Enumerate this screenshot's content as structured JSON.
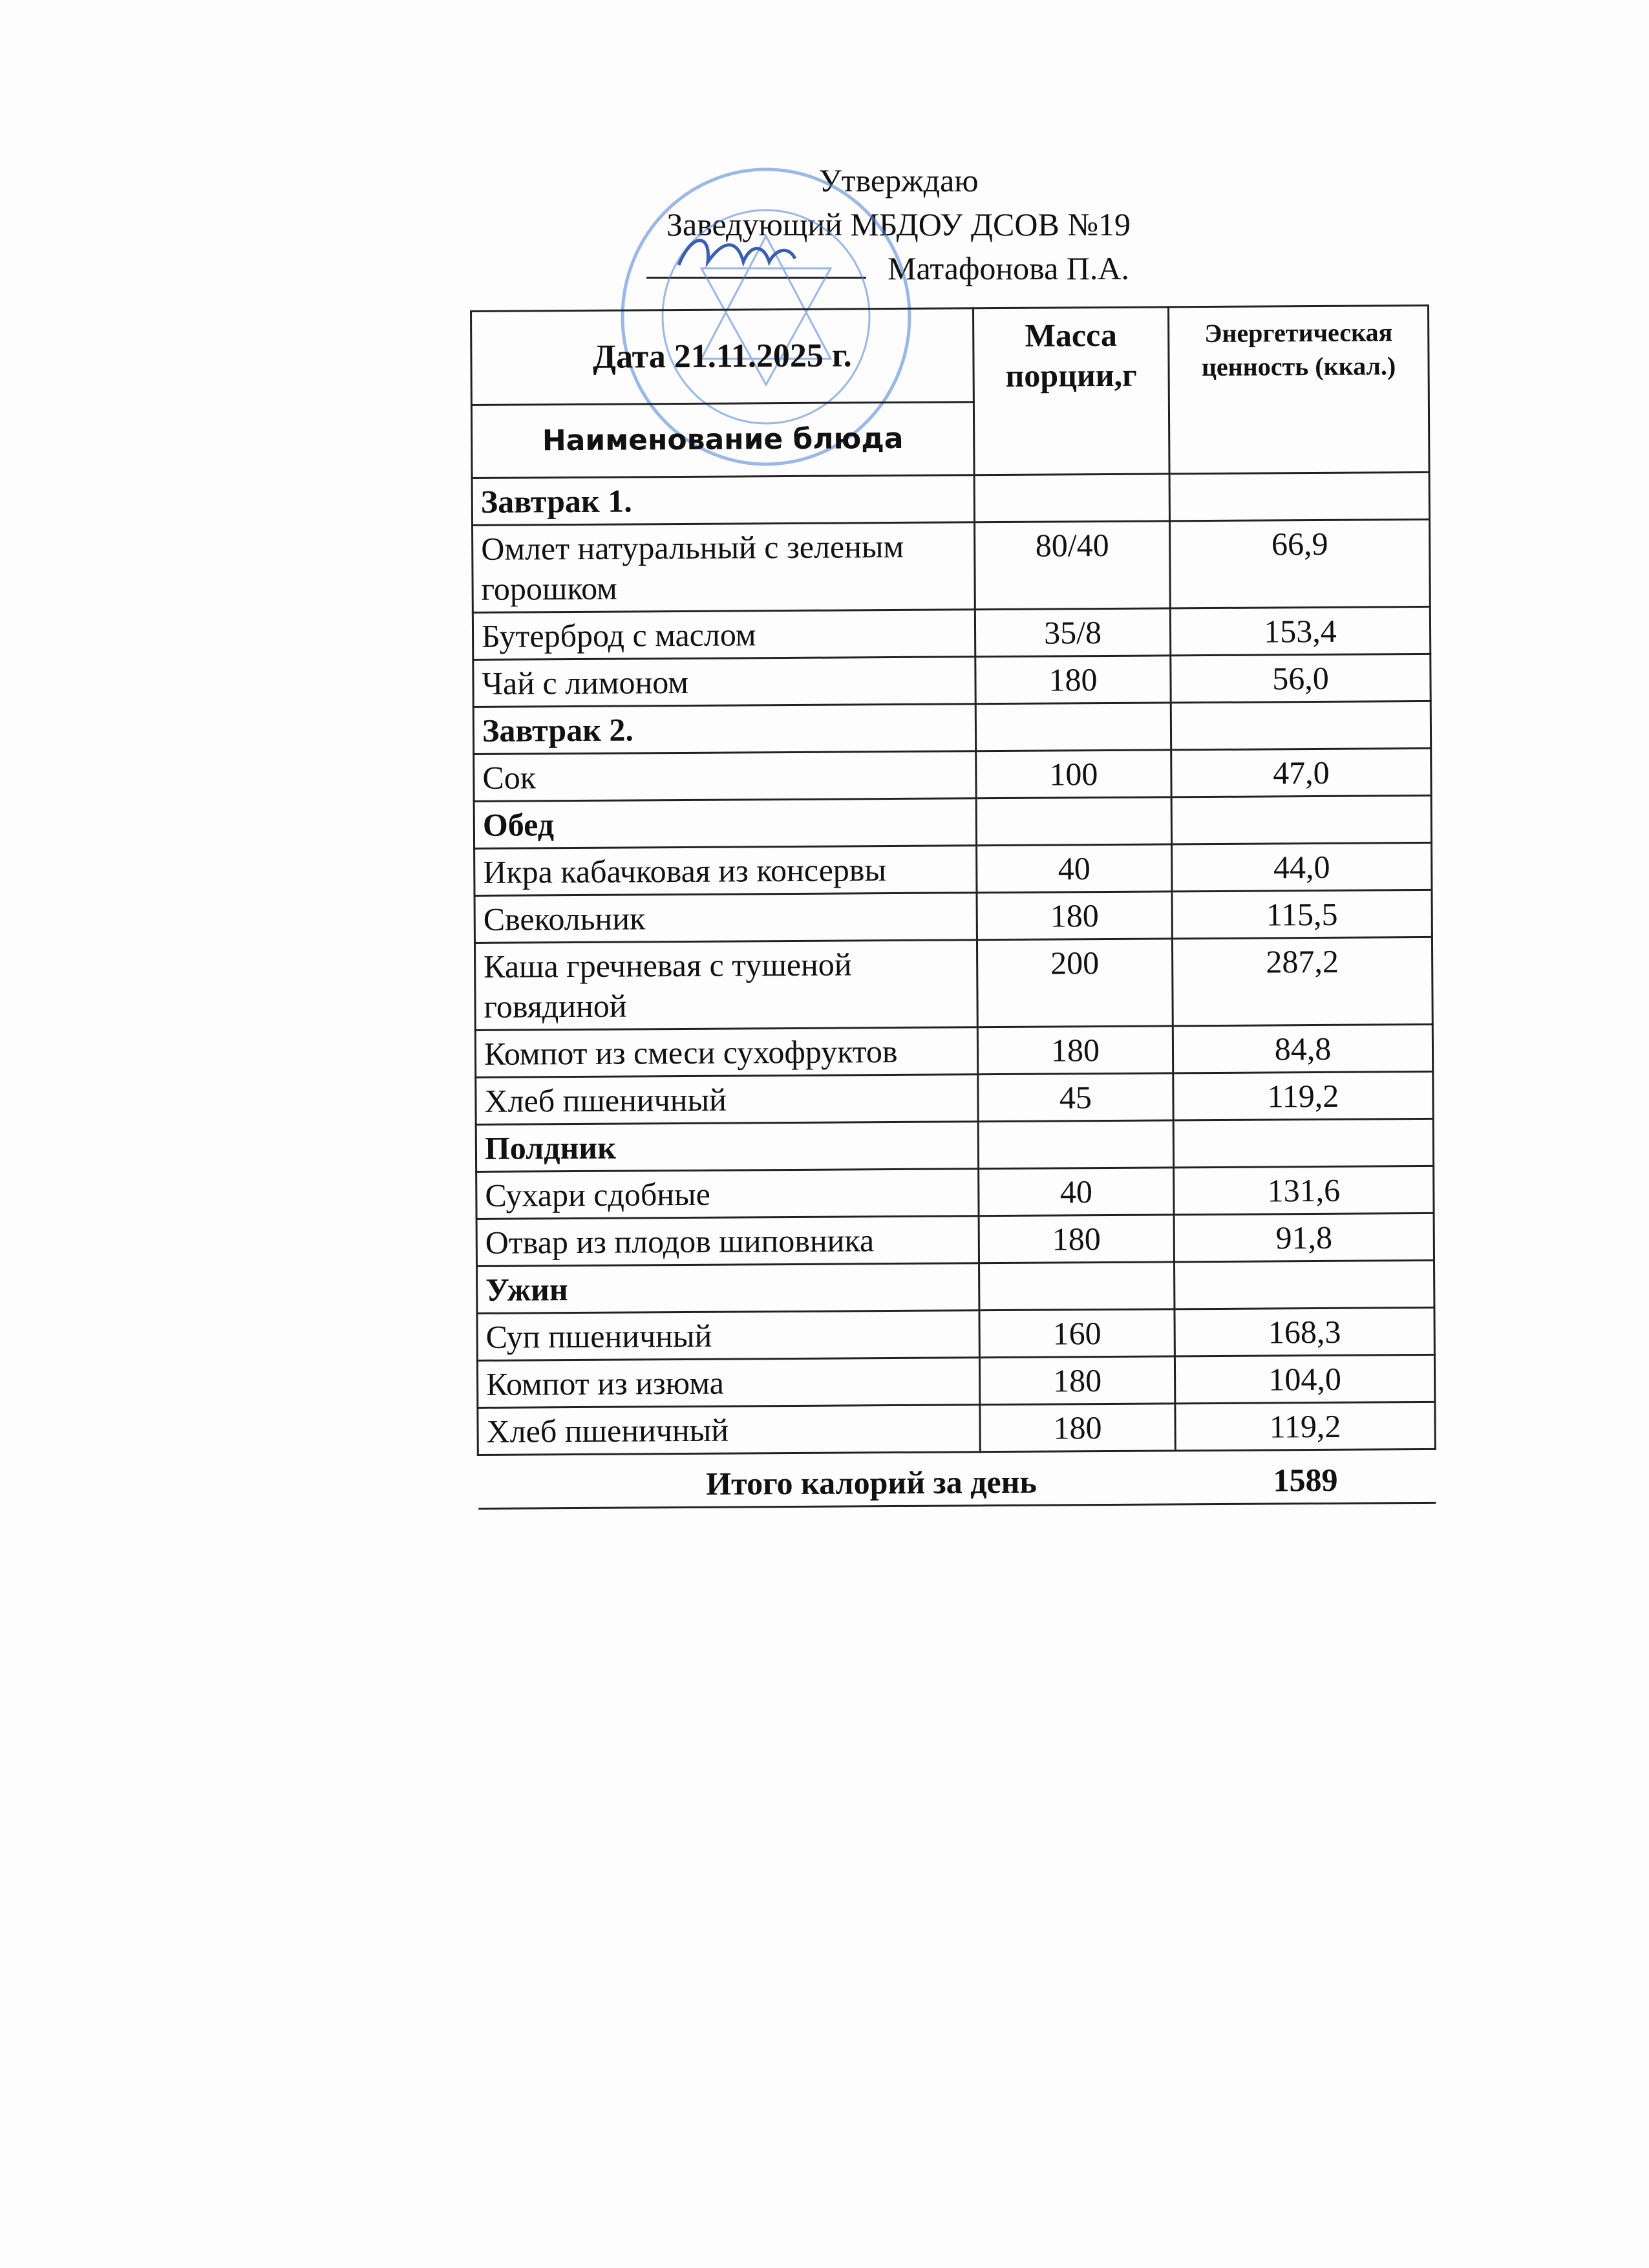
{
  "approval": {
    "line1": "Утверждаю",
    "line2": "Заведующий МБДОУ ДСОВ №19",
    "line3": "Матафонова П.А."
  },
  "stamp_colour": "#4a7fd6",
  "table": {
    "date_header": "Дата 21.11.2025 г.",
    "name_header": "Наименование блюда",
    "mass_header": "Масса порции,г",
    "energy_header": "Энергетическая ценность (ккал.)",
    "rows": [
      {
        "type": "section",
        "name": "Завтрак 1.",
        "mass": "",
        "kcal": ""
      },
      {
        "type": "dish",
        "name": "Омлет натуральный с зеленым горошком",
        "mass": "80/40",
        "kcal": "66,9"
      },
      {
        "type": "dish",
        "name": "Бутерброд с маслом",
        "mass": "35/8",
        "kcal": "153,4"
      },
      {
        "type": "dish",
        "name": "Чай с лимоном",
        "mass": "180",
        "kcal": "56,0"
      },
      {
        "type": "section",
        "name": "Завтрак 2.",
        "mass": "",
        "kcal": ""
      },
      {
        "type": "dish",
        "name": "Сок",
        "mass": "100",
        "kcal": "47,0"
      },
      {
        "type": "section",
        "name": "Обед",
        "mass": "",
        "kcal": ""
      },
      {
        "type": "dish",
        "name": "Икра кабачковая из консервы",
        "mass": "40",
        "kcal": "44,0"
      },
      {
        "type": "dish",
        "name": "Свекольник",
        "mass": "180",
        "kcal": "115,5"
      },
      {
        "type": "dish",
        "name": "Каша гречневая с тушеной говядиной",
        "mass": "200",
        "kcal": "287,2"
      },
      {
        "type": "dish",
        "name": "Компот из смеси сухофруктов",
        "mass": "180",
        "kcal": "84,8"
      },
      {
        "type": "dish",
        "name": "Хлеб пшеничный",
        "mass": "45",
        "kcal": "119,2"
      },
      {
        "type": "section",
        "name": "Полдник",
        "mass": "",
        "kcal": ""
      },
      {
        "type": "dish",
        "name": "Сухари сдобные",
        "mass": "40",
        "kcal": "131,6"
      },
      {
        "type": "dish",
        "name": "Отвар из плодов шиповника",
        "mass": "180",
        "kcal": "91,8"
      },
      {
        "type": "section",
        "name": "Ужин",
        "mass": "",
        "kcal": ""
      },
      {
        "type": "dish",
        "name": "Суп пшеничный",
        "mass": "160",
        "kcal": "168,3"
      },
      {
        "type": "dish",
        "name": "Компот из изюма",
        "mass": "180",
        "kcal": "104,0"
      },
      {
        "type": "dish",
        "name": "Хлеб пшеничный",
        "mass": "180",
        "kcal": "119,2"
      }
    ],
    "total_label": "Итого калорий за день",
    "total_value": "1589"
  }
}
